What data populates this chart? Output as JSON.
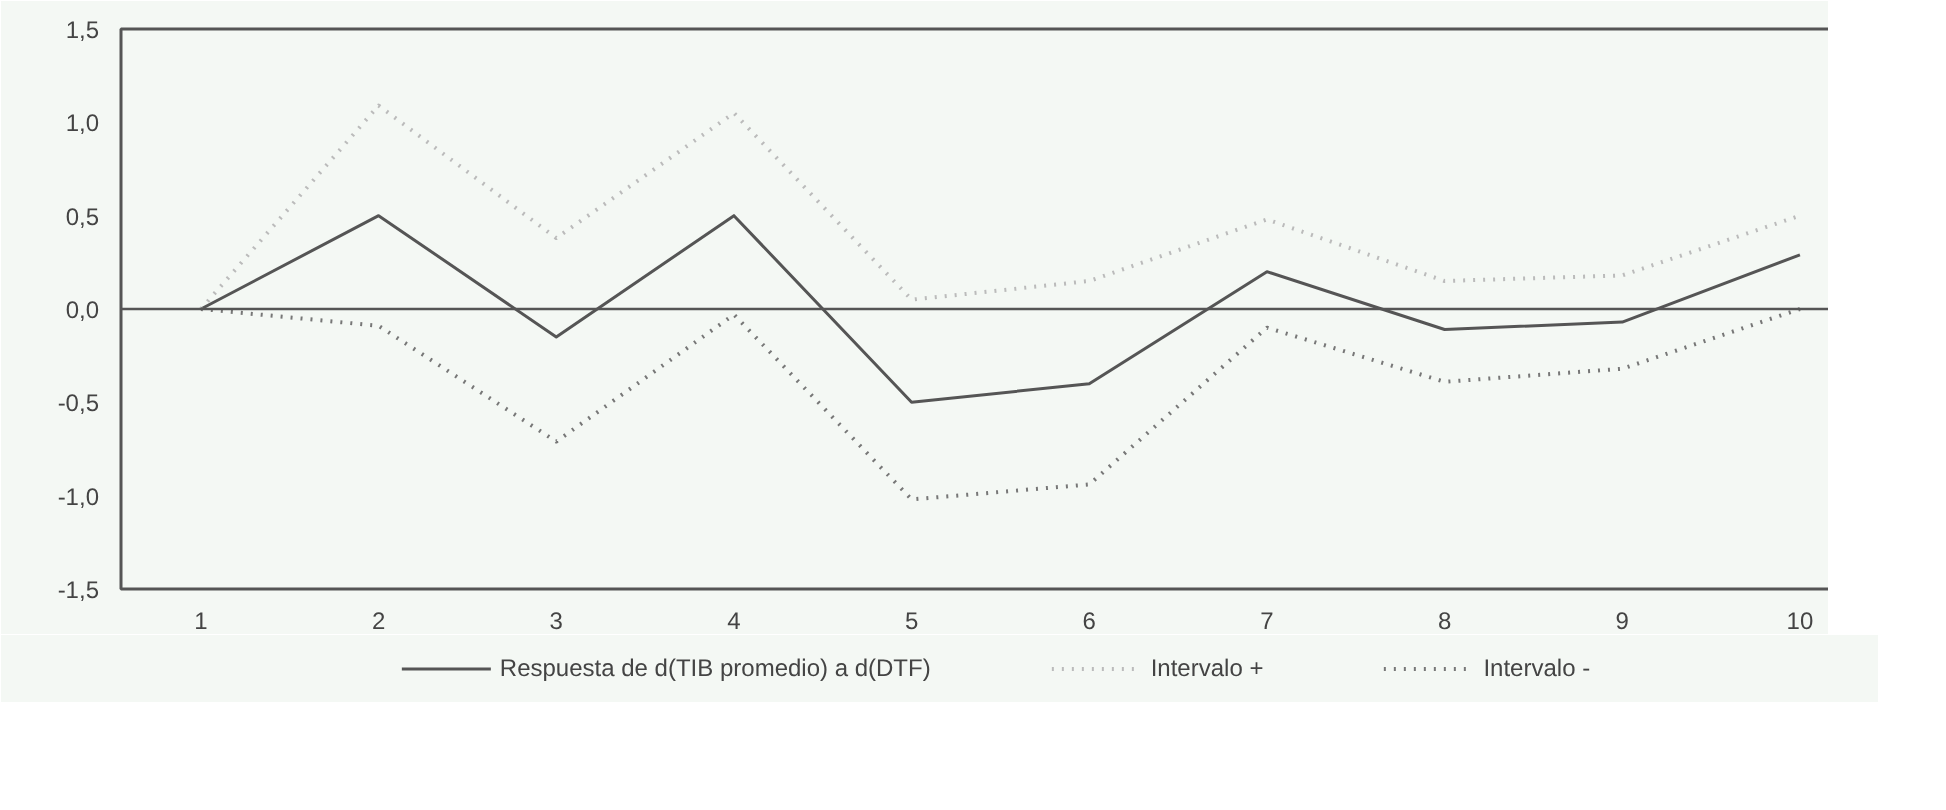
{
  "chart_data": {
    "type": "line",
    "x": [
      1,
      2,
      3,
      4,
      5,
      6,
      7,
      8,
      9,
      10
    ],
    "xlim": [
      0.55,
      10.4
    ],
    "xticks": [
      1,
      2,
      3,
      4,
      5,
      6,
      7,
      8,
      9,
      10
    ],
    "ylim": [
      -1.5,
      1.5
    ],
    "yticks": [
      {
        "value": -1.5,
        "label": "-1,5"
      },
      {
        "value": -1.0,
        "label": "-1,0"
      },
      {
        "value": -0.5,
        "label": "-0,5"
      },
      {
        "value": 0,
        "label": "0,0"
      },
      {
        "value": 0.5,
        "label": "0,5"
      },
      {
        "value": 1.0,
        "label": "1,0"
      },
      {
        "value": 1.5,
        "label": "1,5"
      }
    ],
    "series": [
      {
        "name": "Respuesta de d(TIB promedio) a d(DTF)",
        "color": "#555555",
        "line_style": "solid",
        "values": [
          0,
          0.5,
          -0.15,
          0.5,
          -0.5,
          -0.4,
          0.2,
          -0.11,
          -0.07,
          0.29
        ]
      },
      {
        "name": "Intervalo +",
        "color": "#bbbbbb",
        "line_style": "dotted",
        "values": [
          0,
          1.09,
          0.38,
          1.05,
          0.05,
          0.15,
          0.48,
          0.15,
          0.18,
          0.5
        ]
      },
      {
        "name": "Intervalo -",
        "color": "#777777",
        "line_style": "dotted",
        "values": [
          0,
          -0.09,
          -0.71,
          -0.03,
          -1.02,
          -0.94,
          -0.1,
          -0.39,
          -0.32,
          0.0
        ]
      }
    ],
    "ref_lines": [
      {
        "axis": "y",
        "value": 0,
        "color": "#555555"
      }
    ],
    "grid": false,
    "legend": "bottom",
    "marker": "none"
  }
}
